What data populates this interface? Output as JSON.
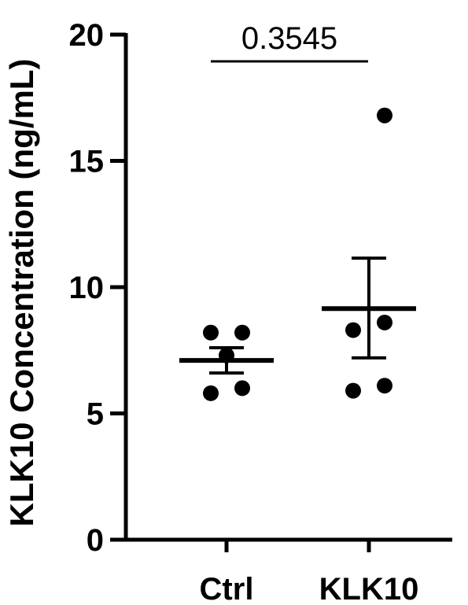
{
  "chart_data": {
    "type": "scatter",
    "ylabel": "KLK10 Concentration (ng/mL)",
    "ylim": [
      0,
      20
    ],
    "yticks": [
      0,
      5,
      10,
      15,
      20
    ],
    "categories": [
      "Ctrl",
      "KLK10"
    ],
    "groups": [
      {
        "category": "Ctrl",
        "points": [
          8.2,
          8.2,
          7.3,
          6.0,
          5.8
        ],
        "mean": 7.1,
        "error_upper": 7.6,
        "error_lower": 6.6
      },
      {
        "category": "KLK10",
        "points": [
          16.8,
          8.6,
          8.3,
          6.1,
          5.9
        ],
        "mean": 9.15,
        "error_upper": 11.15,
        "error_lower": 7.2
      }
    ],
    "annotation": {
      "text": "0.3545",
      "between": [
        "Ctrl",
        "KLK10"
      ]
    },
    "colors": {
      "ink": "#000000",
      "background": "#ffffff"
    }
  }
}
